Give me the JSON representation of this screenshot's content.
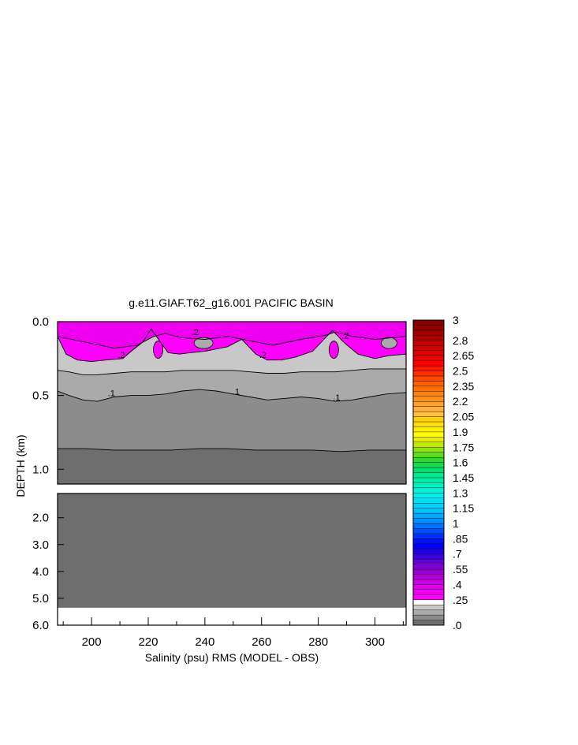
{
  "chart_data": {
    "type": "contour",
    "title": "g.e11.GIAF.T62_g16.001 PACIFIC BASIN",
    "xlabel": "Salinity (psu) RMS (MODEL - OBS)",
    "ylabel": "DEPTH (km)",
    "xlim": [
      188,
      311
    ],
    "x_ticks": [
      "200",
      "220",
      "240",
      "260",
      "280",
      "300"
    ],
    "upper_panel": {
      "ylim": [
        0,
        1.1
      ],
      "y_ticks": [
        "0.0",
        "0.5",
        "1.0"
      ],
      "contour_labels": [
        {
          "text": ".2",
          "x": 236.5,
          "y": 0.09
        },
        {
          "text": ".2",
          "x": 210.5,
          "y": 0.245
        },
        {
          "text": ".2",
          "x": 260.5,
          "y": 0.245
        },
        {
          "text": ".2",
          "x": 289.5,
          "y": 0.115
        },
        {
          "text": ".1",
          "x": 207,
          "y": 0.505
        },
        {
          "text": ".1",
          "x": 251,
          "y": 0.495
        },
        {
          "text": ".1",
          "x": 286.5,
          "y": 0.535
        }
      ],
      "contour_lines": {
        "rms_0.3": {
          "x": [
            188,
            198,
            208,
            216,
            222,
            226,
            232,
            240,
            248,
            256,
            264,
            274,
            283,
            286,
            292,
            300,
            311
          ],
          "y": [
            0.1,
            0.14,
            0.18,
            0.16,
            0.1,
            0.08,
            0.11,
            0.12,
            0.1,
            0.13,
            0.16,
            0.12,
            0.09,
            0.07,
            0.1,
            0.12,
            0.1
          ]
        },
        "rms_0.2": {
          "x": [
            188,
            191,
            195,
            200,
            205,
            211,
            214,
            218,
            221,
            224,
            227,
            231,
            235,
            240,
            248,
            253,
            258,
            262,
            267,
            272,
            278,
            282,
            285,
            289,
            294,
            300,
            305,
            311
          ],
          "y": [
            0.1,
            0.22,
            0.26,
            0.27,
            0.26,
            0.25,
            0.2,
            0.14,
            0.05,
            0.13,
            0.21,
            0.22,
            0.21,
            0.2,
            0.17,
            0.12,
            0.22,
            0.26,
            0.26,
            0.24,
            0.2,
            0.12,
            0.06,
            0.14,
            0.22,
            0.25,
            0.23,
            0.22
          ]
        },
        "rms_0.15": {
          "x": [
            188,
            192,
            197,
            202,
            208,
            214,
            220,
            226,
            232,
            238,
            244,
            250,
            256,
            262,
            268,
            274,
            280,
            286,
            292,
            298,
            304,
            311
          ],
          "y": [
            0.33,
            0.34,
            0.36,
            0.36,
            0.35,
            0.34,
            0.34,
            0.34,
            0.33,
            0.33,
            0.33,
            0.33,
            0.34,
            0.35,
            0.35,
            0.34,
            0.34,
            0.34,
            0.33,
            0.32,
            0.32,
            0.32
          ]
        },
        "rms_0.1": {
          "x": [
            188,
            192,
            197,
            202,
            208,
            214,
            220,
            226,
            232,
            238,
            244,
            250,
            256,
            262,
            268,
            274,
            280,
            286,
            292,
            298,
            304,
            311
          ],
          "y": [
            0.47,
            0.5,
            0.53,
            0.54,
            0.51,
            0.5,
            0.5,
            0.49,
            0.47,
            0.46,
            0.47,
            0.49,
            0.51,
            0.53,
            0.52,
            0.51,
            0.52,
            0.54,
            0.53,
            0.51,
            0.49,
            0.48
          ]
        },
        "rms_0.05": {
          "x": [
            188,
            198,
            208,
            218,
            228,
            238,
            248,
            258,
            268,
            278,
            288,
            298,
            311
          ],
          "y": [
            0.86,
            0.86,
            0.87,
            0.87,
            0.87,
            0.86,
            0.86,
            0.87,
            0.87,
            0.87,
            0.88,
            0.87,
            0.87
          ]
        }
      }
    },
    "lower_panel": {
      "ylim": [
        1.1,
        6.0
      ],
      "y_ticks": [
        "2.0",
        "3.0",
        "4.0",
        "5.0",
        "6.0"
      ],
      "land_below_depth": 5.35
    },
    "colorbar": {
      "labels": [
        "3",
        "2.8",
        "2.65",
        "2.5",
        "2.35",
        "2.2",
        "2.05",
        "1.9",
        "1.75",
        "1.6",
        "1.45",
        "1.3",
        "1.15",
        "1",
        ".85",
        ".7",
        ".55",
        ".4",
        ".25",
        ".0"
      ],
      "levels": [
        0,
        0.05,
        0.1,
        0.15,
        0.2,
        0.25,
        0.3,
        0.35,
        0.4,
        0.45,
        0.5,
        0.55,
        0.6,
        0.65,
        0.7,
        0.75,
        0.8,
        0.85,
        0.9,
        0.95,
        1,
        1.05,
        1.1,
        1.15,
        1.2,
        1.25,
        1.3,
        1.35,
        1.4,
        1.45,
        1.5,
        1.55,
        1.6,
        1.65,
        1.7,
        1.75,
        1.8,
        1.85,
        1.9,
        1.95,
        2,
        2.05,
        2.1,
        2.15,
        2.2,
        2.25,
        2.3,
        2.35,
        2.4,
        2.45,
        2.5,
        2.55,
        2.6,
        2.65,
        2.7,
        2.75,
        2.8,
        2.85,
        2.9,
        2.95,
        3
      ],
      "colors": [
        "#6e6e6e",
        "#8c8c8c",
        "#aaaaaa",
        "#c8c8c8",
        "#ffffff",
        "#ff00ff",
        "#f000f0",
        "#e000e8",
        "#cc00e6",
        "#b400dc",
        "#9a00d6",
        "#8000d6",
        "#6400d8",
        "#3c00e0",
        "#2000e8",
        "#0000f0",
        "#0010f8",
        "#0030ff",
        "#0050ff",
        "#0070ff",
        "#0090ff",
        "#00a8ff",
        "#00c0ff",
        "#00d2fa",
        "#00e0f4",
        "#00eeee",
        "#00f0d8",
        "#00f0c0",
        "#00eca8",
        "#00e890",
        "#00e070",
        "#10dc50",
        "#30d830",
        "#60dc20",
        "#90e010",
        "#c0e800",
        "#e4f000",
        "#ffff00",
        "#fff000",
        "#ffe000",
        "#ffd000",
        "#ffc040",
        "#ffb040",
        "#ffa030",
        "#ff9020",
        "#ff8010",
        "#ff7000",
        "#ff6000",
        "#ff4800",
        "#ff3000",
        "#ff1800",
        "#ff0000",
        "#f00000",
        "#e00000",
        "#d00000",
        "#c00000",
        "#b00000",
        "#a00000",
        "#900000",
        "#800000"
      ]
    }
  }
}
